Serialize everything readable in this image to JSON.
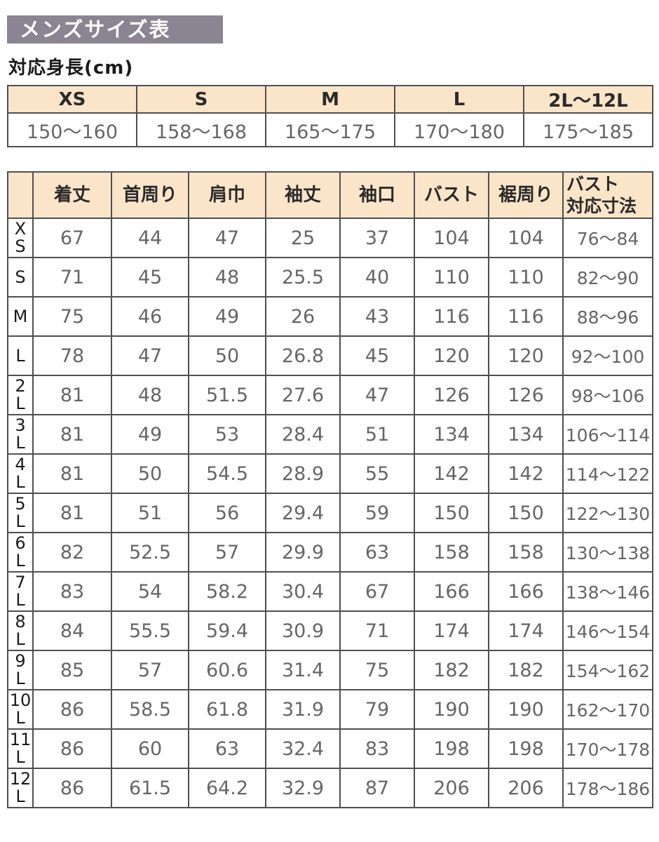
{
  "page": {
    "title": "メンズサイズ表",
    "subtitle": "対応身長(cm)"
  },
  "colors": {
    "title_bg": "#8b8492",
    "title_text": "#ffffff",
    "header_bg": "#fbe5c9",
    "border": "#4f4f4f",
    "value_text": "#666666",
    "label_text": "#1a1a1a"
  },
  "height_table": {
    "sizes": [
      "XS",
      "S",
      "M",
      "L",
      "2L〜12L"
    ],
    "heights": [
      "150〜160",
      "158〜168",
      "165〜175",
      "170〜180",
      "175〜185"
    ]
  },
  "size_table": {
    "columns": [
      "着丈",
      "首周り",
      "肩巾",
      "袖丈",
      "袖口",
      "バスト",
      "裾周り",
      "バスト\n対応寸法"
    ],
    "rows": [
      {
        "size": "X\nS",
        "values": [
          "67",
          "44",
          "47",
          "25",
          "37",
          "104",
          "104",
          "76〜84"
        ]
      },
      {
        "size": "S",
        "values": [
          "71",
          "45",
          "48",
          "25.5",
          "40",
          "110",
          "110",
          "82〜90"
        ]
      },
      {
        "size": "M",
        "values": [
          "75",
          "46",
          "49",
          "26",
          "43",
          "116",
          "116",
          "88〜96"
        ]
      },
      {
        "size": "L",
        "values": [
          "78",
          "47",
          "50",
          "26.8",
          "45",
          "120",
          "120",
          "92〜100"
        ]
      },
      {
        "size": "2\nL",
        "values": [
          "81",
          "48",
          "51.5",
          "27.6",
          "47",
          "126",
          "126",
          "98〜106"
        ]
      },
      {
        "size": "3\nL",
        "values": [
          "81",
          "49",
          "53",
          "28.4",
          "51",
          "134",
          "134",
          "106〜114"
        ]
      },
      {
        "size": "4\nL",
        "values": [
          "81",
          "50",
          "54.5",
          "28.9",
          "55",
          "142",
          "142",
          "114〜122"
        ]
      },
      {
        "size": "5\nL",
        "values": [
          "81",
          "51",
          "56",
          "29.4",
          "59",
          "150",
          "150",
          "122〜130"
        ]
      },
      {
        "size": "6\nL",
        "values": [
          "82",
          "52.5",
          "57",
          "29.9",
          "63",
          "158",
          "158",
          "130〜138"
        ]
      },
      {
        "size": "7\nL",
        "values": [
          "83",
          "54",
          "58.2",
          "30.4",
          "67",
          "166",
          "166",
          "138〜146"
        ]
      },
      {
        "size": "8\nL",
        "values": [
          "84",
          "55.5",
          "59.4",
          "30.9",
          "71",
          "174",
          "174",
          "146〜154"
        ]
      },
      {
        "size": "9\nL",
        "values": [
          "85",
          "57",
          "60.6",
          "31.4",
          "75",
          "182",
          "182",
          "154〜162"
        ]
      },
      {
        "size": "10\nL",
        "values": [
          "86",
          "58.5",
          "61.8",
          "31.9",
          "79",
          "190",
          "190",
          "162〜170"
        ]
      },
      {
        "size": "11\nL",
        "values": [
          "86",
          "60",
          "63",
          "32.4",
          "83",
          "198",
          "198",
          "170〜178"
        ]
      },
      {
        "size": "12\nL",
        "values": [
          "86",
          "61.5",
          "64.2",
          "32.9",
          "87",
          "206",
          "206",
          "178〜186"
        ]
      }
    ]
  },
  "chart_data": [
    {
      "type": "table",
      "title": "対応身長(cm)",
      "columns": [
        "XS",
        "S",
        "M",
        "L",
        "2L〜12L"
      ],
      "values": [
        [
          "150〜160",
          "158〜168",
          "165〜175",
          "170〜180",
          "175〜185"
        ]
      ]
    },
    {
      "type": "table",
      "title": "メンズサイズ表",
      "row_labels": [
        "XS",
        "S",
        "M",
        "L",
        "2L",
        "3L",
        "4L",
        "5L",
        "6L",
        "7L",
        "8L",
        "9L",
        "10L",
        "11L",
        "12L"
      ],
      "columns": [
        "着丈",
        "首周り",
        "肩巾",
        "袖丈",
        "袖口",
        "バスト",
        "裾周り",
        "バスト対応寸法"
      ],
      "values": [
        [
          67,
          44,
          47,
          25,
          37,
          104,
          104,
          "76〜84"
        ],
        [
          71,
          45,
          48,
          25.5,
          40,
          110,
          110,
          "82〜90"
        ],
        [
          75,
          46,
          49,
          26,
          43,
          116,
          116,
          "88〜96"
        ],
        [
          78,
          47,
          50,
          26.8,
          45,
          120,
          120,
          "92〜100"
        ],
        [
          81,
          48,
          51.5,
          27.6,
          47,
          126,
          126,
          "98〜106"
        ],
        [
          81,
          49,
          53,
          28.4,
          51,
          134,
          134,
          "106〜114"
        ],
        [
          81,
          50,
          54.5,
          28.9,
          55,
          142,
          142,
          "114〜122"
        ],
        [
          81,
          51,
          56,
          29.4,
          59,
          150,
          150,
          "122〜130"
        ],
        [
          82,
          52.5,
          57,
          29.9,
          63,
          158,
          158,
          "130〜138"
        ],
        [
          83,
          54,
          58.2,
          30.4,
          67,
          166,
          166,
          "138〜146"
        ],
        [
          84,
          55.5,
          59.4,
          30.9,
          71,
          174,
          174,
          "146〜154"
        ],
        [
          85,
          57,
          60.6,
          31.4,
          75,
          182,
          182,
          "154〜162"
        ],
        [
          86,
          58.5,
          61.8,
          31.9,
          79,
          190,
          190,
          "162〜170"
        ],
        [
          86,
          60,
          63,
          32.4,
          83,
          198,
          198,
          "170〜178"
        ],
        [
          86,
          61.5,
          64.2,
          32.9,
          87,
          206,
          206,
          "178〜186"
        ]
      ]
    }
  ]
}
